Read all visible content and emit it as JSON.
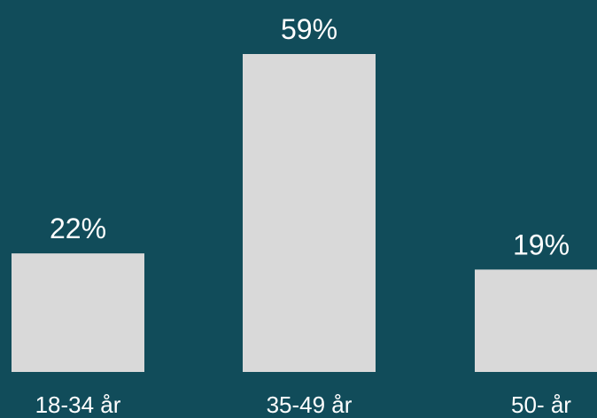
{
  "colors": {
    "background": "#114c5a",
    "bar": "#d9d9d9",
    "text": "#ffffff"
  },
  "chart_data": {
    "type": "bar",
    "categories": [
      "18-34 år",
      "35-49 år",
      "50- år"
    ],
    "values": [
      22,
      59,
      19
    ],
    "value_labels": [
      "22%",
      "59%",
      "19%"
    ],
    "ylim": [
      0,
      59
    ],
    "grid": false,
    "legend": "none"
  }
}
